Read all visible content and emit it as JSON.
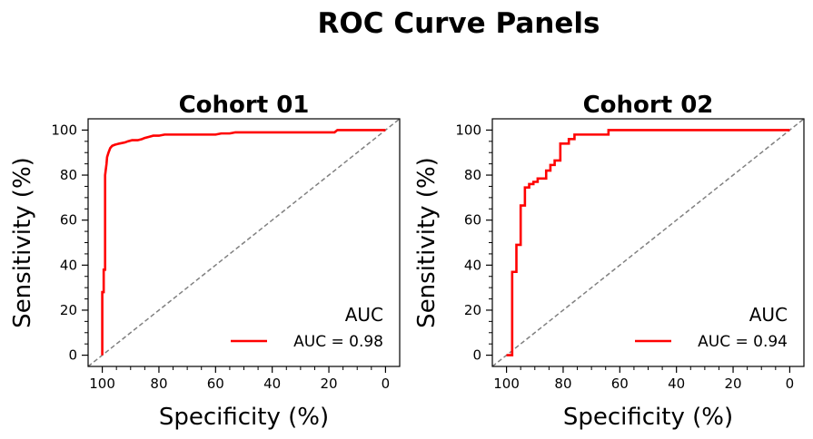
{
  "figure_title": "ROC Curve Panels",
  "chart_data": [
    {
      "type": "line",
      "title": "Cohort 01",
      "xlabel": "Specificity (%)",
      "ylabel": "Sensitivity (%)",
      "x_reversed": true,
      "xlim": [
        105,
        -5
      ],
      "ylim": [
        -5,
        105
      ],
      "xticks": [
        "100",
        "80",
        "60",
        "40",
        "20",
        "0"
      ],
      "yticks": [
        "0",
        "20",
        "40",
        "60",
        "80",
        "100"
      ],
      "reference_line": "diagonal dashed gray",
      "legend_title": "AUC",
      "legend_position": "lower-right",
      "grid": false,
      "series": [
        {
          "name": "AUC = 0.98",
          "color": "#ff0000",
          "x": [
            100,
            100,
            99.5,
            99.5,
            99,
            99,
            98.8,
            98.5,
            98.3,
            97.8,
            97.2,
            96.5,
            95.5,
            94.0,
            92.0,
            91.0,
            89.5,
            87.5,
            86.0,
            85.0,
            83.5,
            82.0,
            80.0,
            78.0,
            60.0,
            58.0,
            55.0,
            53.0,
            18.0,
            17.0,
            0
          ],
          "y": [
            0,
            28,
            28,
            38,
            38,
            80,
            82,
            85,
            88,
            90,
            92,
            93,
            93.5,
            94,
            94.5,
            95,
            95.5,
            95.5,
            96,
            96.5,
            97,
            97.5,
            97.5,
            98,
            98,
            98.5,
            98.5,
            99,
            99,
            100,
            100
          ]
        }
      ]
    },
    {
      "type": "line",
      "title": "Cohort 02",
      "xlabel": "Specificity (%)",
      "ylabel": "Sensitivity (%)",
      "x_reversed": true,
      "xlim": [
        105,
        -5
      ],
      "ylim": [
        -5,
        105
      ],
      "xticks": [
        "100",
        "80",
        "60",
        "40",
        "20",
        "0"
      ],
      "yticks": [
        "0",
        "20",
        "40",
        "60",
        "80",
        "100"
      ],
      "reference_line": "diagonal dashed gray",
      "legend_title": "AUC",
      "legend_position": "lower-right",
      "grid": false,
      "series": [
        {
          "name": "AUC = 0.94",
          "color": "#ff0000",
          "x": [
            100,
            98,
            98,
            96.5,
            96.5,
            95,
            95,
            93.5,
            93.5,
            92,
            92,
            90.5,
            90.5,
            89,
            89,
            86,
            86,
            84.5,
            84.5,
            83,
            83,
            81,
            81,
            80,
            80,
            78,
            78,
            76,
            76,
            64,
            64,
            0
          ],
          "y": [
            0,
            0,
            37,
            37,
            49,
            49,
            66.5,
            66.5,
            74.5,
            74.5,
            76,
            76,
            77,
            77,
            78.5,
            78.5,
            82,
            82,
            84.5,
            84.5,
            86.5,
            86.5,
            94,
            94,
            94,
            94,
            96,
            96,
            98,
            98,
            100,
            100
          ]
        }
      ]
    }
  ]
}
